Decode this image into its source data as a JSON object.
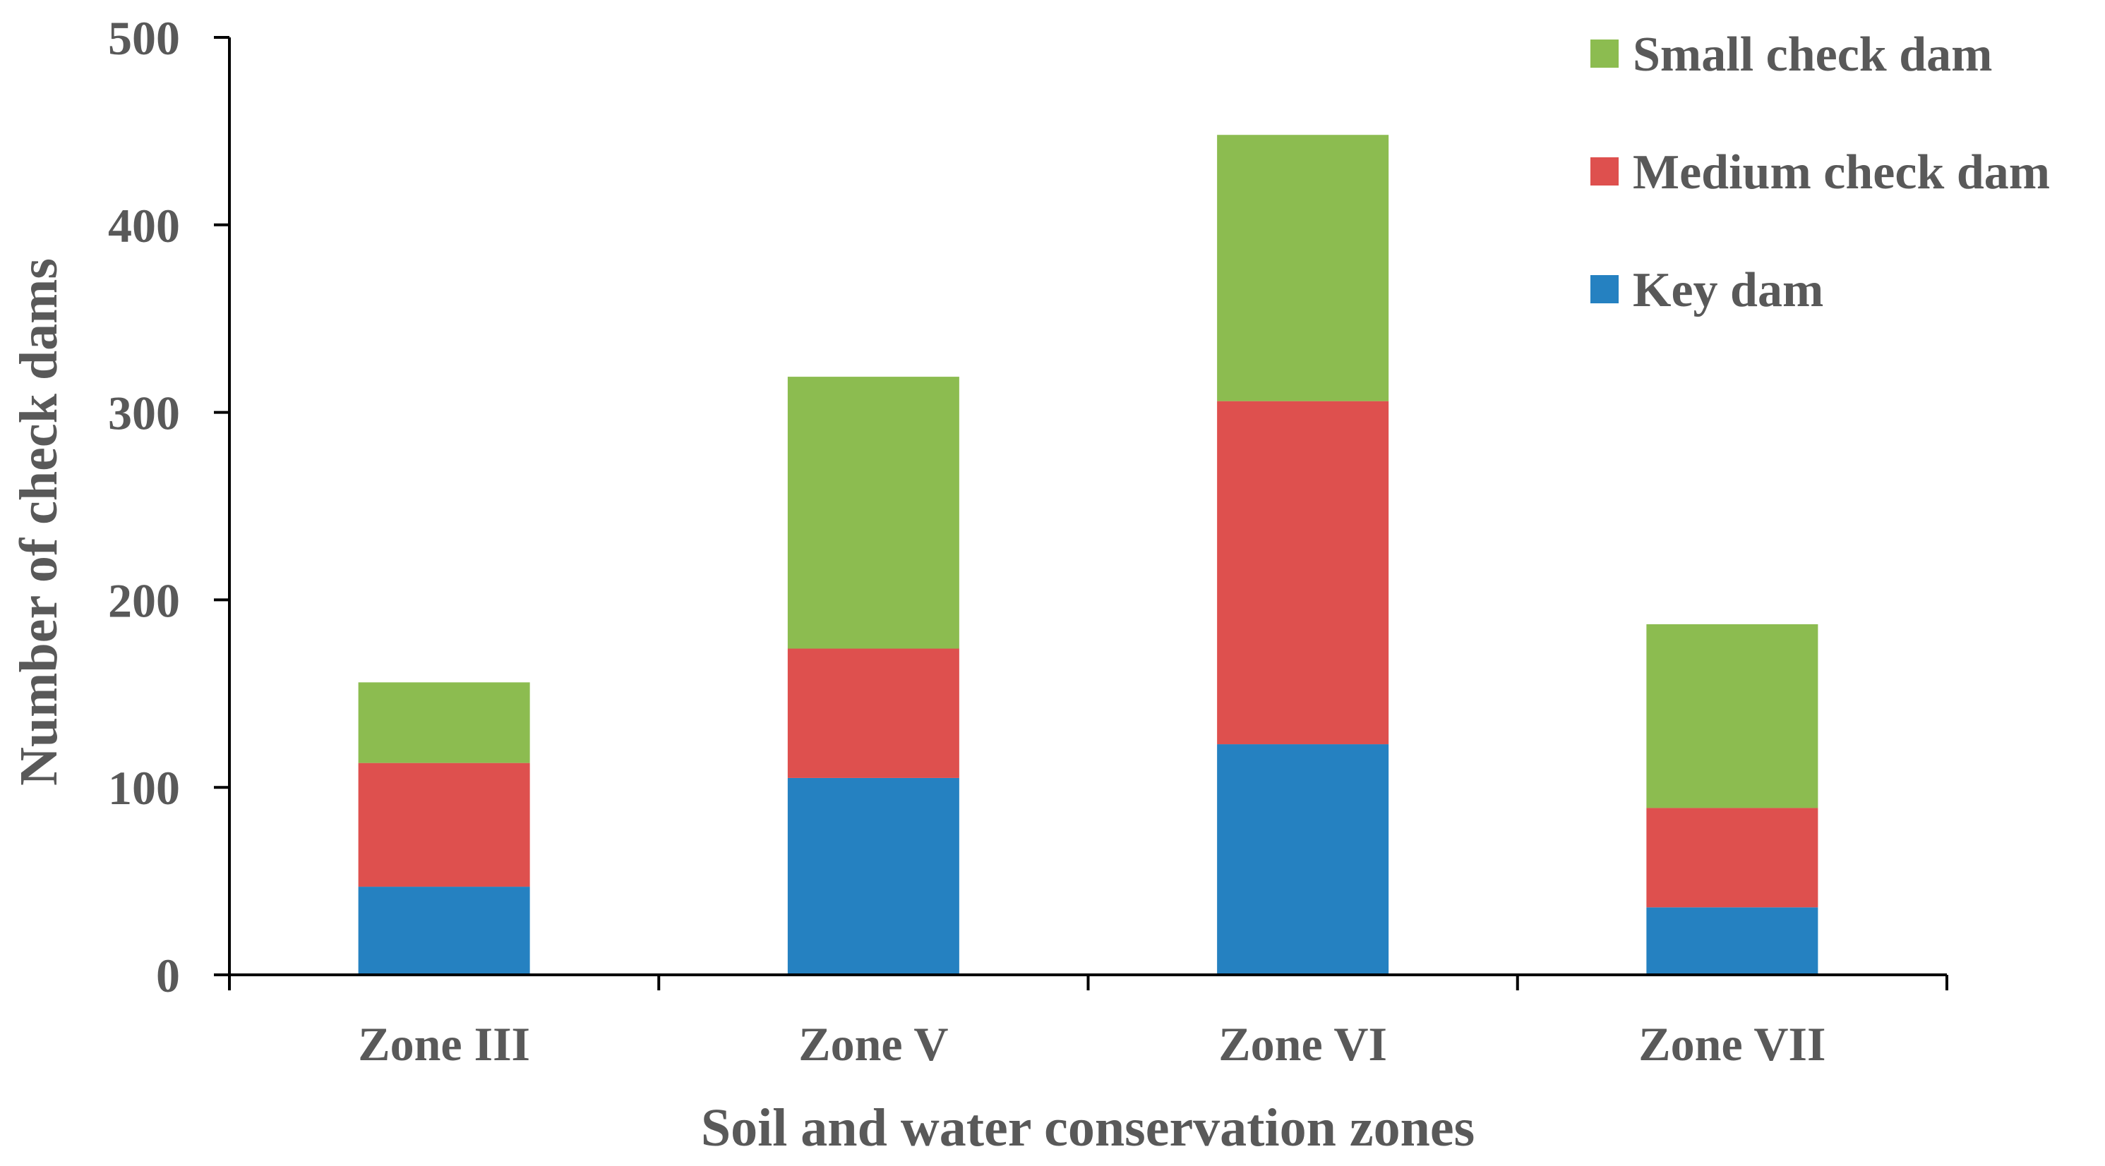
{
  "chart_data": {
    "type": "bar",
    "stacked": true,
    "categories": [
      "Zone III",
      "Zone V",
      "Zone VI",
      "Zone VII"
    ],
    "series": [
      {
        "name": "Key dam",
        "color": "#2581c1",
        "values": [
          47,
          105,
          123,
          36
        ]
      },
      {
        "name": "Medium check dam",
        "color": "#de504e",
        "values": [
          66,
          69,
          183,
          53
        ]
      },
      {
        "name": "Small check dam",
        "color": "#8cbc50",
        "values": [
          43,
          145,
          142,
          98
        ]
      }
    ],
    "xlabel": "Soil and water conservation zones",
    "ylabel": "Number of check dams",
    "ylim": [
      0,
      500
    ],
    "yticks": [
      "0",
      "100",
      "200",
      "300",
      "400",
      "500"
    ],
    "legend_position": "top-right",
    "legend_order": [
      "Small check dam",
      "Medium check dam",
      "Key dam"
    ],
    "grid": false
  }
}
